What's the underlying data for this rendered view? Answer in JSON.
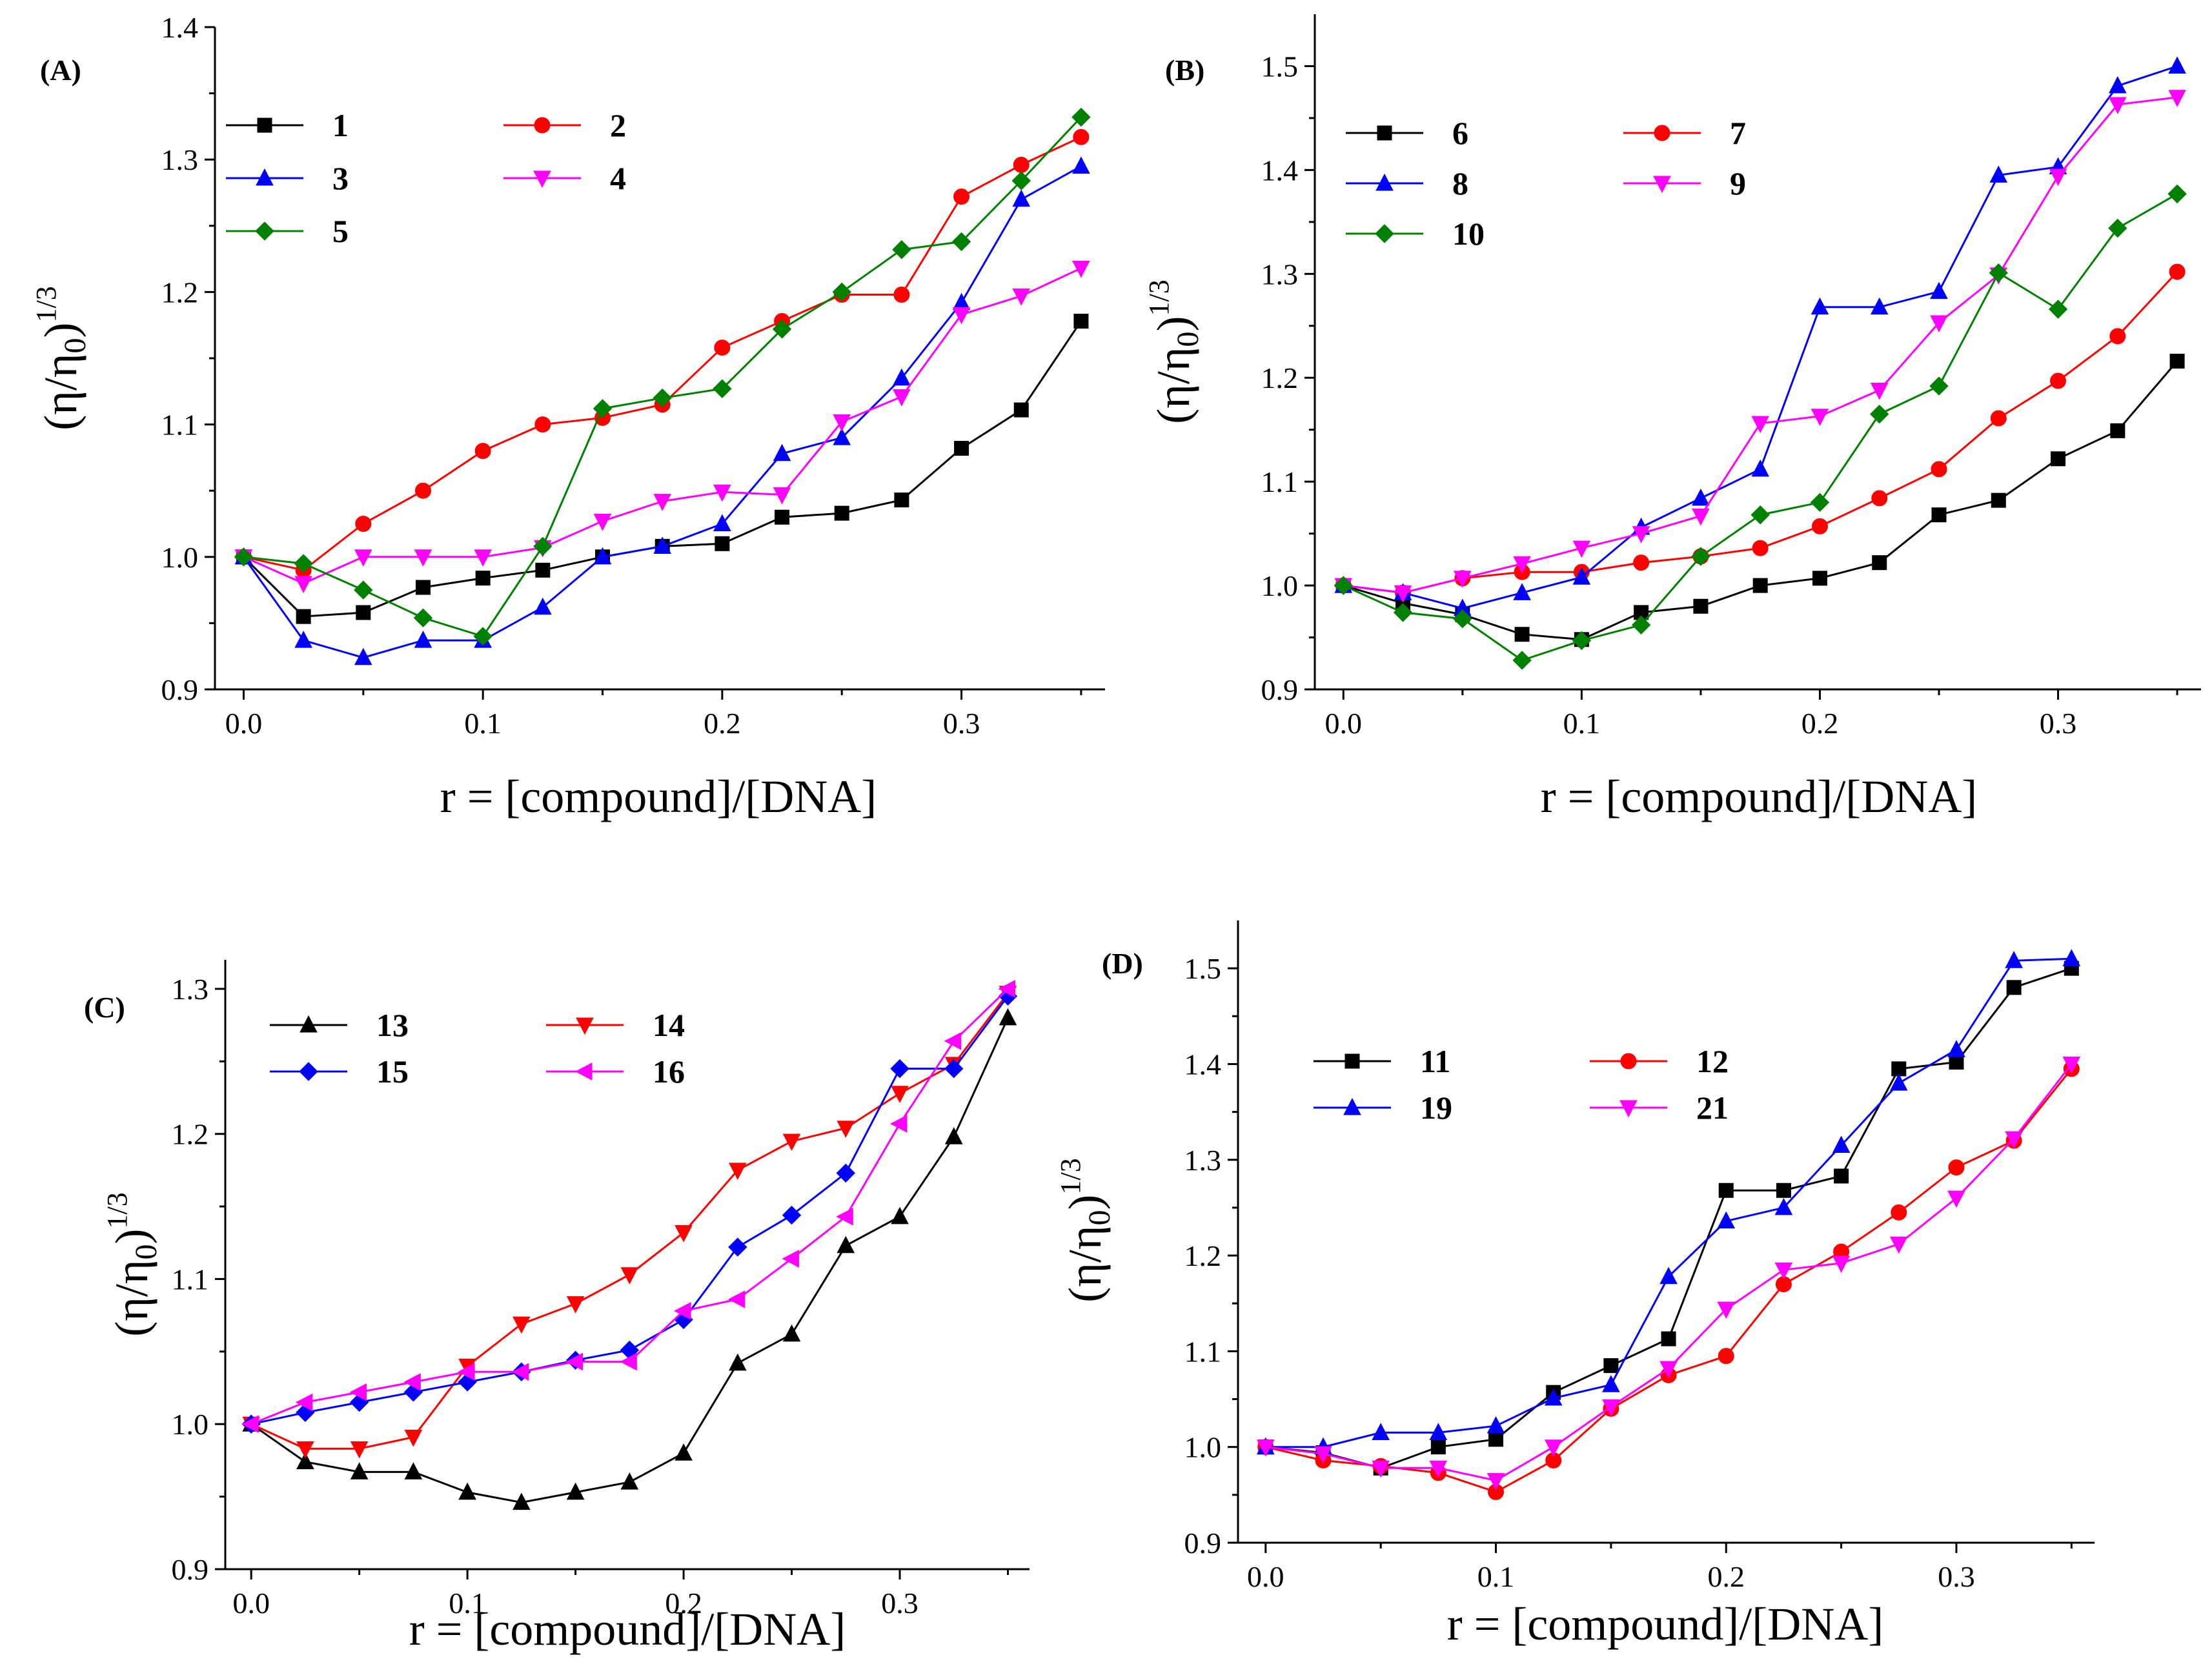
{
  "chart_data": [
    {
      "panel_label": "(A)",
      "type": "line",
      "xlabel": "r = [compound]/[DNA]",
      "ylabel_base": "(η/η",
      "ylabel_sub": "0",
      "ylabel_close": ")",
      "ylabel_sup": "1/3",
      "xlim": [
        -0.012,
        0.36
      ],
      "ylim": [
        0.9,
        1.4
      ],
      "xticks": [
        0.0,
        0.1,
        0.2,
        0.3
      ],
      "xtick_labels": [
        "0.0",
        "0.1",
        "0.2",
        "0.3"
      ],
      "yticks": [
        0.9,
        1.0,
        1.1,
        1.2,
        1.3,
        1.4
      ],
      "ytick_labels": [
        "0.9",
        "1.0",
        "1.1",
        "1.2",
        "1.3",
        "1.4"
      ],
      "x": [
        0,
        0.025,
        0.05,
        0.075,
        0.1,
        0.125,
        0.15,
        0.175,
        0.2,
        0.225,
        0.25,
        0.275,
        0.3,
        0.325,
        0.35
      ],
      "series": [
        {
          "name": "1",
          "color": "#000000",
          "marker": "square",
          "values": [
            1.0,
            0.955,
            0.958,
            0.977,
            0.984,
            0.99,
            1.0,
            1.008,
            1.01,
            1.03,
            1.033,
            1.043,
            1.082,
            1.111,
            1.178
          ]
        },
        {
          "name": "2",
          "color": "#ff0000",
          "marker": "circle",
          "values": [
            1.0,
            0.99,
            1.025,
            1.05,
            1.08,
            1.1,
            1.105,
            1.115,
            1.158,
            1.178,
            1.198,
            1.198,
            1.272,
            1.296,
            1.317
          ]
        },
        {
          "name": "3",
          "color": "#0000ff",
          "marker": "triangle-up",
          "values": [
            1.0,
            0.937,
            0.924,
            0.937,
            0.937,
            0.962,
            1.0,
            1.008,
            1.025,
            1.078,
            1.09,
            1.135,
            1.192,
            1.27,
            1.295
          ]
        },
        {
          "name": "4",
          "color": "#ff00ff",
          "marker": "triangle-down",
          "values": [
            1.0,
            0.98,
            1.0,
            1.0,
            1.0,
            1.007,
            1.027,
            1.042,
            1.049,
            1.047,
            1.102,
            1.121,
            1.183,
            1.197,
            1.218
          ]
        },
        {
          "name": "5",
          "color": "#008000",
          "marker": "diamond",
          "values": [
            1.0,
            0.995,
            0.975,
            0.954,
            0.94,
            1.008,
            1.112,
            1.12,
            1.127,
            1.172,
            1.2,
            1.232,
            1.238,
            1.284,
            1.332
          ]
        }
      ]
    },
    {
      "panel_label": "(B)",
      "type": "line",
      "xlabel": "r = [compound]/[DNA]",
      "ylabel_base": "(η/η",
      "ylabel_sub": "0",
      "ylabel_close": ")",
      "ylabel_sup": "1/3",
      "xlim": [
        -0.012,
        0.36
      ],
      "ylim": [
        0.9,
        1.55
      ],
      "xticks": [
        0.0,
        0.1,
        0.2,
        0.3
      ],
      "xtick_labels": [
        "0.0",
        "0.1",
        "0.2",
        "0.3"
      ],
      "yticks": [
        0.9,
        1.0,
        1.1,
        1.2,
        1.3,
        1.4,
        1.5
      ],
      "ytick_labels": [
        "0.9",
        "1.0",
        "1.1",
        "1.2",
        "1.3",
        "1.4",
        "1.5"
      ],
      "x": [
        0,
        0.025,
        0.05,
        0.075,
        0.1,
        0.125,
        0.15,
        0.175,
        0.2,
        0.225,
        0.25,
        0.275,
        0.3,
        0.325,
        0.35
      ],
      "series": [
        {
          "name": "6",
          "color": "#000000",
          "marker": "square",
          "values": [
            1.0,
            0.983,
            0.972,
            0.953,
            0.948,
            0.974,
            0.98,
            1.0,
            1.007,
            1.022,
            1.068,
            1.082,
            1.122,
            1.149,
            1.216
          ]
        },
        {
          "name": "7",
          "color": "#ff0000",
          "marker": "circle",
          "values": [
            1.0,
            0.993,
            1.007,
            1.013,
            1.013,
            1.022,
            1.028,
            1.036,
            1.057,
            1.084,
            1.112,
            1.161,
            1.197,
            1.24,
            1.302
          ]
        },
        {
          "name": "8",
          "color": "#0000ff",
          "marker": "triangle-up",
          "values": [
            1.0,
            0.993,
            0.978,
            0.993,
            1.008,
            1.056,
            1.084,
            1.112,
            1.268,
            1.268,
            1.283,
            1.395,
            1.403,
            1.481,
            1.5
          ]
        },
        {
          "name": "9",
          "color": "#ff00ff",
          "marker": "triangle-down",
          "values": [
            1.0,
            0.993,
            1.007,
            1.021,
            1.036,
            1.05,
            1.067,
            1.156,
            1.163,
            1.188,
            1.253,
            1.299,
            1.394,
            1.463,
            1.47
          ]
        },
        {
          "name": "10",
          "color": "#008000",
          "marker": "diamond",
          "values": [
            1.0,
            0.974,
            0.968,
            0.928,
            0.947,
            0.962,
            1.028,
            1.068,
            1.08,
            1.165,
            1.192,
            1.301,
            1.266,
            1.344,
            1.377
          ]
        }
      ]
    },
    {
      "panel_label": "(C)",
      "type": "line",
      "xlabel": "r = [compound]/[DNA]",
      "ylabel_base": "(η/η",
      "ylabel_sub": "0",
      "ylabel_close": ")",
      "ylabel_sup": "1/3",
      "xlim": [
        -0.012,
        0.36
      ],
      "ylim": [
        0.9,
        1.32
      ],
      "xticks": [
        0.0,
        0.1,
        0.2,
        0.3
      ],
      "xtick_labels": [
        "0.0",
        "0.1",
        "0.2",
        "0.3"
      ],
      "yticks": [
        0.9,
        1.0,
        1.1,
        1.2,
        1.3
      ],
      "ytick_labels": [
        "0.9",
        "1.0",
        "1.1",
        "1.2",
        "1.3"
      ],
      "x": [
        0,
        0.025,
        0.05,
        0.075,
        0.1,
        0.125,
        0.15,
        0.175,
        0.2,
        0.225,
        0.25,
        0.275,
        0.3,
        0.325,
        0.35
      ],
      "series": [
        {
          "name": "13",
          "color": "#000000",
          "marker": "triangle-up",
          "values": [
            1.0,
            0.974,
            0.967,
            0.967,
            0.953,
            0.946,
            0.953,
            0.96,
            0.98,
            1.042,
            1.062,
            1.123,
            1.143,
            1.198,
            1.28
          ]
        },
        {
          "name": "14",
          "color": "#ff0000",
          "marker": "triangle-down",
          "values": [
            1.0,
            0.983,
            0.983,
            0.991,
            1.04,
            1.069,
            1.083,
            1.103,
            1.132,
            1.175,
            1.195,
            1.204,
            1.228,
            1.248,
            1.297
          ]
        },
        {
          "name": "15",
          "color": "#0000ff",
          "marker": "diamond",
          "values": [
            1.0,
            1.008,
            1.015,
            1.022,
            1.029,
            1.036,
            1.044,
            1.051,
            1.072,
            1.122,
            1.144,
            1.173,
            1.245,
            1.245,
            1.295
          ]
        },
        {
          "name": "16",
          "color": "#ff00ff",
          "marker": "triangle-left",
          "values": [
            1.0,
            1.015,
            1.022,
            1.029,
            1.036,
            1.036,
            1.043,
            1.043,
            1.078,
            1.086,
            1.114,
            1.143,
            1.207,
            1.264,
            1.3
          ]
        }
      ]
    },
    {
      "panel_label": "(D)",
      "type": "line",
      "xlabel": "r = [compound]/[DNA]",
      "ylabel_base": "(η/η",
      "ylabel_sub": "0",
      "ylabel_close": ")",
      "ylabel_sup": "1/3",
      "xlim": [
        -0.012,
        0.36
      ],
      "ylim": [
        0.9,
        1.55
      ],
      "xticks": [
        0.0,
        0.1,
        0.2,
        0.3
      ],
      "xtick_labels": [
        "0.0",
        "0.1",
        "0.2",
        "0.3"
      ],
      "yticks": [
        0.9,
        1.0,
        1.1,
        1.2,
        1.3,
        1.4,
        1.5
      ],
      "ytick_labels": [
        "0.9",
        "1.0",
        "1.1",
        "1.2",
        "1.3",
        "1.4",
        "1.5"
      ],
      "x": [
        0,
        0.025,
        0.05,
        0.075,
        0.1,
        0.125,
        0.15,
        0.175,
        0.2,
        0.225,
        0.25,
        0.275,
        0.3,
        0.325,
        0.35
      ],
      "series": [
        {
          "name": "11",
          "color": "#000000",
          "marker": "square",
          "values": [
            1.0,
            0.994,
            0.978,
            1.0,
            1.008,
            1.057,
            1.085,
            1.113,
            1.268,
            1.268,
            1.283,
            1.395,
            1.402,
            1.48,
            1.5
          ]
        },
        {
          "name": "12",
          "color": "#ff0000",
          "marker": "circle",
          "values": [
            1.0,
            0.986,
            0.98,
            0.973,
            0.953,
            0.986,
            1.04,
            1.075,
            1.095,
            1.17,
            1.204,
            1.245,
            1.292,
            1.32,
            1.395
          ]
        },
        {
          "name": "19",
          "color": "#0000ff",
          "marker": "triangle-up",
          "values": [
            1.0,
            1.0,
            1.015,
            1.015,
            1.022,
            1.051,
            1.065,
            1.178,
            1.236,
            1.25,
            1.315,
            1.38,
            1.415,
            1.508,
            1.51
          ]
        },
        {
          "name": "21",
          "color": "#ff00ff",
          "marker": "triangle-down",
          "values": [
            1.0,
            0.993,
            0.978,
            0.978,
            0.965,
            1.0,
            1.042,
            1.082,
            1.144,
            1.185,
            1.192,
            1.212,
            1.26,
            1.322,
            1.4
          ]
        }
      ]
    }
  ]
}
